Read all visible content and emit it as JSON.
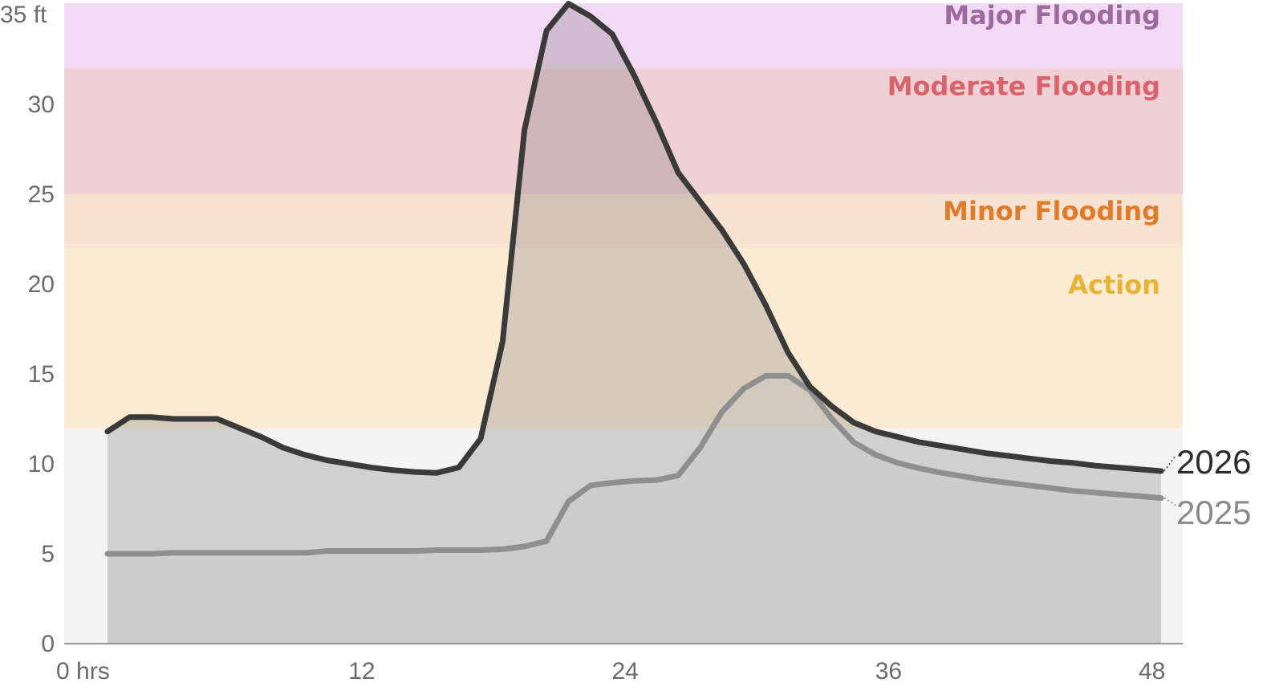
{
  "chart_data": {
    "type": "area",
    "title": "",
    "xlabel": "",
    "ylabel": "",
    "x_unit_label": "hrs",
    "y_unit_label": "ft",
    "xlim": [
      -2,
      49
    ],
    "ylim": [
      0,
      35.7
    ],
    "x_ticks": [
      0,
      12,
      24,
      36,
      48
    ],
    "y_ticks": [
      0,
      5,
      10,
      15,
      20,
      25,
      30,
      35
    ],
    "grid": false,
    "bands": [
      {
        "name": "Action",
        "from": 12,
        "to": 22,
        "color": "#fbebd3",
        "label_color": "#e8b339"
      },
      {
        "name": "Minor Flooding",
        "from": 22,
        "to": 25,
        "color": "#f8e3d3",
        "label_color": "#e07b2a"
      },
      {
        "name": "Moderate Flooding",
        "from": 25,
        "to": 32,
        "color": "#f0d0d5",
        "label_color": "#d9636b"
      },
      {
        "name": "Major Flooding",
        "from": 32,
        "to": 35.7,
        "color": "#f3daf4",
        "label_color": "#9c6a9e"
      }
    ],
    "below_band_color": "#f3f3f3",
    "series": [
      {
        "name": "2026",
        "color": "#3a3a3a",
        "fill": "rgba(110,110,110,0.26)",
        "x": [
          0,
          1,
          2,
          3,
          4,
          5,
          6,
          7,
          8,
          9,
          10,
          11,
          12,
          13,
          14,
          15,
          16,
          17,
          18,
          19,
          20,
          21,
          22,
          23,
          24,
          25,
          26,
          27,
          28,
          29,
          30,
          31,
          32,
          33,
          34,
          35,
          36,
          37,
          38,
          39,
          40,
          41,
          42,
          43,
          44,
          45,
          46,
          47,
          48
        ],
        "values": [
          11.8,
          12.6,
          12.6,
          12.5,
          12.5,
          12.5,
          12.0,
          11.5,
          10.9,
          10.5,
          10.2,
          10.0,
          9.8,
          9.65,
          9.55,
          9.5,
          9.8,
          11.4,
          16.8,
          28.6,
          34.1,
          35.6,
          34.9,
          33.9,
          31.6,
          29.0,
          26.2,
          24.6,
          23.0,
          21.1,
          18.8,
          16.2,
          14.3,
          13.2,
          12.3,
          11.8,
          11.5,
          11.2,
          11.0,
          10.8,
          10.6,
          10.45,
          10.3,
          10.15,
          10.05,
          9.9,
          9.8,
          9.7,
          9.6
        ]
      },
      {
        "name": "2025",
        "color": "#8f8f8f",
        "fill": "rgba(200,200,200,0.35)",
        "x": [
          0,
          1,
          2,
          3,
          4,
          5,
          6,
          7,
          8,
          9,
          10,
          11,
          12,
          13,
          14,
          15,
          16,
          17,
          18,
          19,
          20,
          21,
          22,
          23,
          24,
          25,
          26,
          27,
          28,
          29,
          30,
          31,
          32,
          33,
          34,
          35,
          36,
          37,
          38,
          39,
          40,
          41,
          42,
          43,
          44,
          45,
          46,
          47,
          48
        ],
        "values": [
          5.0,
          5.0,
          5.0,
          5.05,
          5.05,
          5.05,
          5.05,
          5.05,
          5.05,
          5.05,
          5.15,
          5.15,
          5.15,
          5.15,
          5.15,
          5.2,
          5.2,
          5.2,
          5.25,
          5.4,
          5.7,
          7.9,
          8.8,
          8.95,
          9.05,
          9.1,
          9.35,
          10.9,
          12.9,
          14.2,
          14.9,
          14.9,
          14.1,
          12.5,
          11.2,
          10.5,
          10.05,
          9.75,
          9.5,
          9.3,
          9.1,
          8.95,
          8.8,
          8.65,
          8.5,
          8.4,
          8.3,
          8.2,
          8.1
        ]
      }
    ]
  }
}
